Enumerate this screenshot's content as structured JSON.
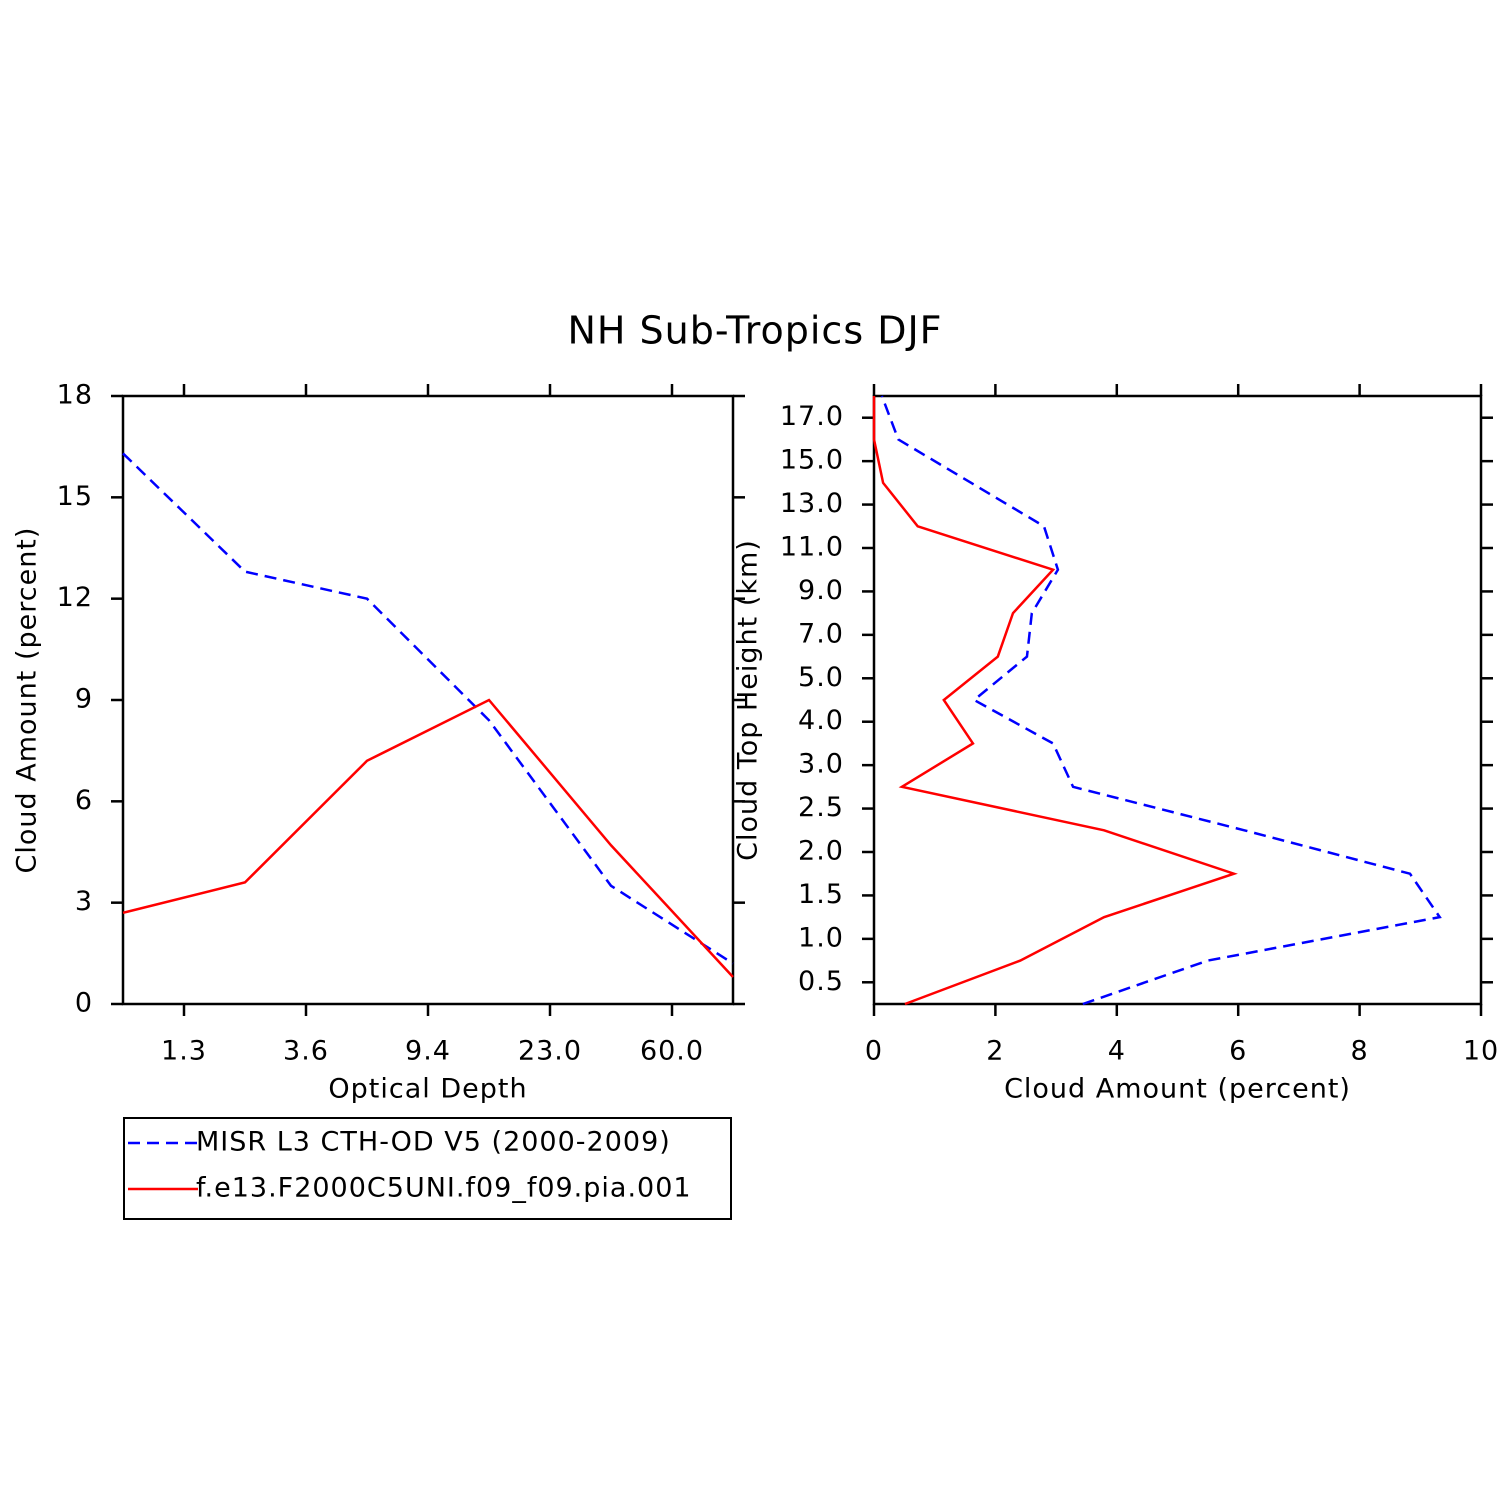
{
  "title": "NH Sub-Tropics DJF",
  "chart_data": [
    {
      "type": "line",
      "x_label": "Optical Depth",
      "y_label": "Cloud Amount (percent)",
      "x": [
        0,
        1,
        2,
        3,
        4,
        5
      ],
      "xlim": [
        0,
        5
      ],
      "xticks": [
        {
          "value": 0.5,
          "label": "1.3"
        },
        {
          "value": 1.5,
          "label": "3.6"
        },
        {
          "value": 2.5,
          "label": "9.4"
        },
        {
          "value": 3.5,
          "label": "23.0"
        },
        {
          "value": 4.5,
          "label": "60.0"
        }
      ],
      "ylim": [
        0,
        18
      ],
      "yticks": [
        0,
        3,
        6,
        9,
        12,
        15,
        18
      ],
      "legend": "below",
      "series": [
        {
          "name": "MISR L3 CTH-OD V5 (2000-2009)",
          "color": "#0000ff",
          "dashed": true,
          "values": [
            16.3,
            12.8,
            12.0,
            8.4,
            3.5,
            1.2
          ]
        },
        {
          "name": "f.e13.F2000C5UNI.f09_f09.pia.001",
          "color": "#ff0000",
          "dashed": false,
          "values": [
            2.7,
            3.6,
            7.2,
            9.0,
            4.7,
            0.8
          ]
        }
      ]
    },
    {
      "type": "line",
      "orientation": "vertical",
      "x_label": "Cloud Amount (percent)",
      "y_label": "Cloud Top Height (km)",
      "y": [
        0,
        1,
        2,
        3,
        4,
        5,
        6,
        7,
        8,
        9,
        10,
        11,
        12,
        13,
        14
      ],
      "ylim": [
        0,
        14
      ],
      "yticks": [
        {
          "value": 0.5,
          "label": "0.5"
        },
        {
          "value": 1.5,
          "label": "1.0"
        },
        {
          "value": 2.5,
          "label": "1.5"
        },
        {
          "value": 3.5,
          "label": "2.0"
        },
        {
          "value": 4.5,
          "label": "2.5"
        },
        {
          "value": 5.5,
          "label": "3.0"
        },
        {
          "value": 6.5,
          "label": "4.0"
        },
        {
          "value": 7.5,
          "label": "5.0"
        },
        {
          "value": 8.5,
          "label": "7.0"
        },
        {
          "value": 9.5,
          "label": "9.0"
        },
        {
          "value": 10.5,
          "label": "11.0"
        },
        {
          "value": 11.5,
          "label": "13.0"
        },
        {
          "value": 12.5,
          "label": "15.0"
        },
        {
          "value": 13.5,
          "label": "17.0"
        }
      ],
      "xlim": [
        0,
        10
      ],
      "xticks": [
        0,
        2,
        4,
        6,
        8,
        10
      ],
      "series": [
        {
          "color": "#0000ff",
          "dashed": true,
          "values": [
            3.44,
            5.5,
            9.32,
            8.83,
            6.1,
            3.28,
            2.95,
            1.65,
            2.52,
            2.6,
            3.03,
            2.8,
            1.6,
            0.4,
            0.13
          ]
        },
        {
          "color": "#ff0000",
          "dashed": false,
          "values": [
            0.51,
            2.41,
            3.79,
            5.93,
            3.79,
            0.46,
            1.63,
            1.15,
            2.04,
            2.29,
            2.95,
            0.72,
            0.15,
            0,
            0
          ]
        }
      ]
    }
  ]
}
